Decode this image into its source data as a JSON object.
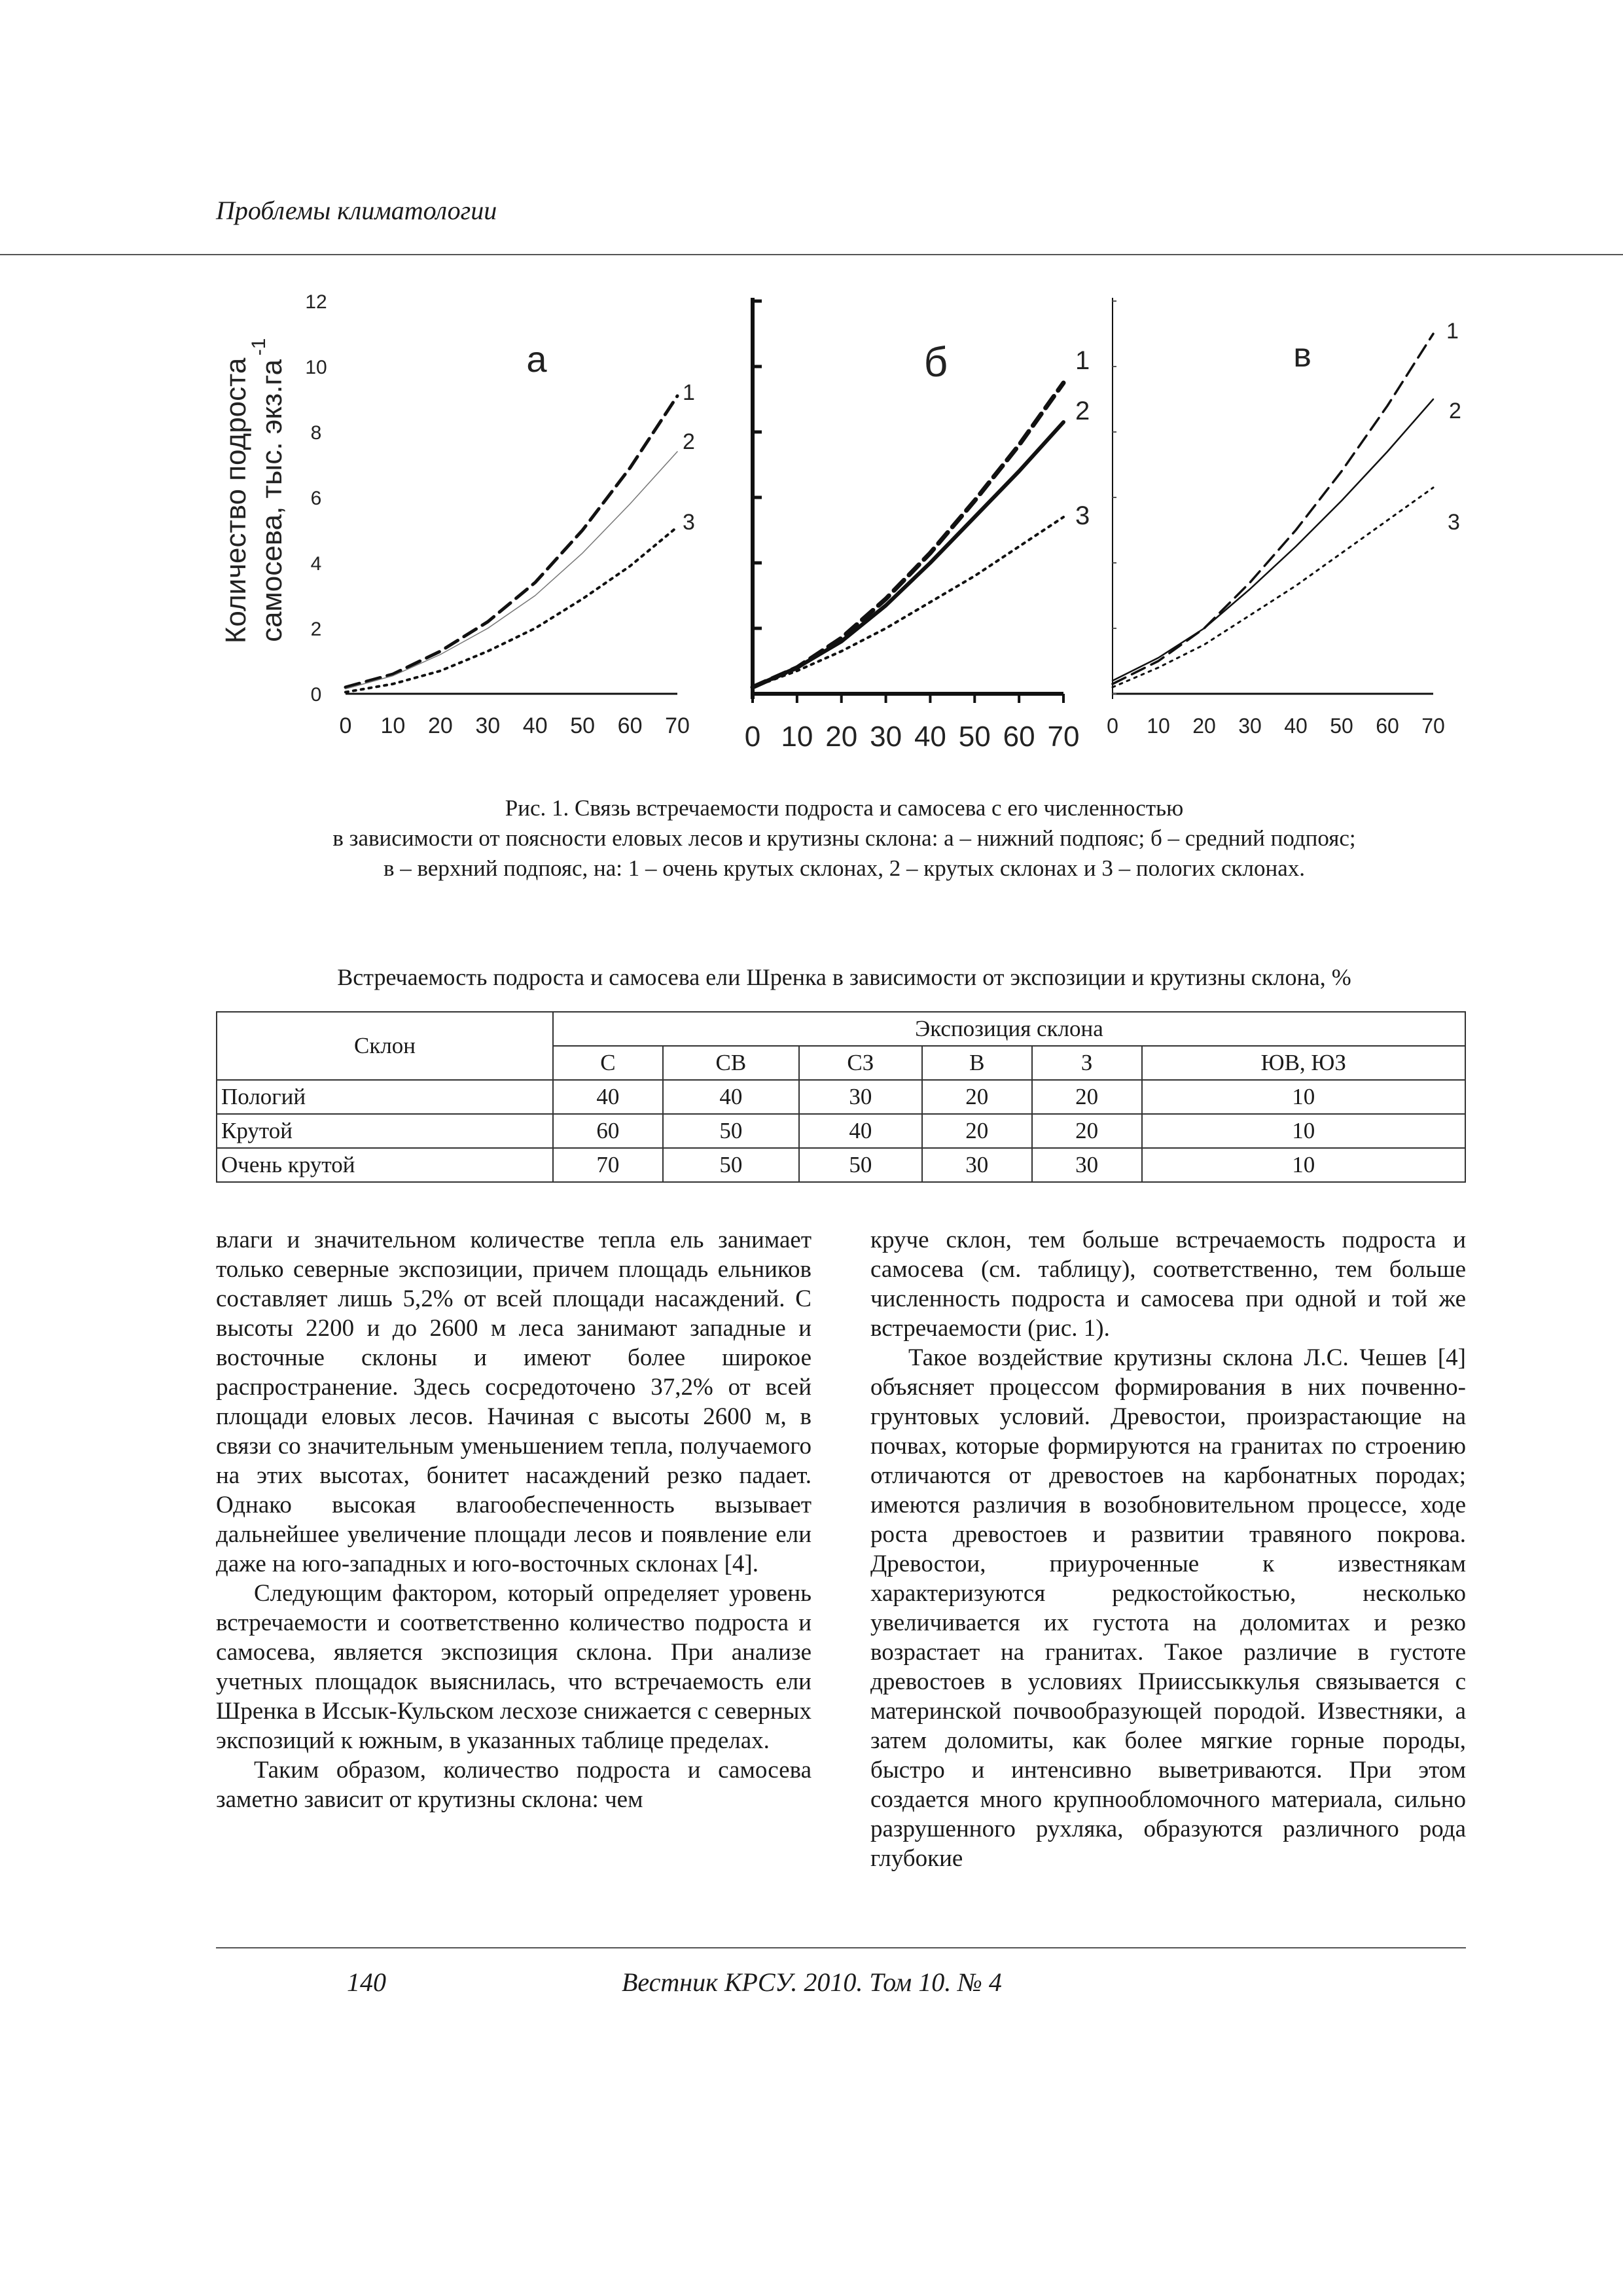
{
  "header": {
    "running_title": "Проблемы климатологии"
  },
  "chart_data": [
    {
      "type": "line",
      "panel_label": "а",
      "ylabel": "Количество подроста самосева, тыс. экз.га-1",
      "xlim": [
        0,
        70
      ],
      "ylim": [
        0,
        12
      ],
      "x_ticks": [
        "0",
        "10",
        "20",
        "30",
        "40",
        "50",
        "60",
        "70"
      ],
      "y_ticks": [
        "0",
        "2",
        "4",
        "6",
        "8",
        "10",
        "12"
      ],
      "series": [
        {
          "name": "1",
          "style": "dashed",
          "x": [
            0,
            10,
            20,
            30,
            40,
            50,
            60,
            70
          ],
          "y": [
            0.2,
            0.6,
            1.3,
            2.2,
            3.4,
            5.0,
            6.9,
            9.1
          ]
        },
        {
          "name": "2",
          "style": "solid",
          "x": [
            0,
            10,
            20,
            30,
            40,
            50,
            60,
            70
          ],
          "y": [
            0.15,
            0.55,
            1.2,
            2.0,
            3.0,
            4.3,
            5.8,
            7.4
          ]
        },
        {
          "name": "3",
          "style": "dotted",
          "x": [
            0,
            10,
            20,
            30,
            40,
            50,
            60,
            70
          ],
          "y": [
            0.05,
            0.3,
            0.7,
            1.3,
            2.0,
            2.9,
            3.9,
            5.1
          ]
        }
      ]
    },
    {
      "type": "line",
      "panel_label": "б",
      "xlim": [
        0,
        70
      ],
      "ylim": [
        0,
        12
      ],
      "x_ticks": [
        "0",
        "10",
        "20",
        "30",
        "40",
        "50",
        "60",
        "70"
      ],
      "series": [
        {
          "name": "1",
          "style": "dashed",
          "x": [
            0,
            10,
            20,
            30,
            40,
            50,
            60,
            70
          ],
          "y": [
            0.2,
            0.8,
            1.7,
            2.9,
            4.3,
            5.9,
            7.6,
            9.5
          ]
        },
        {
          "name": "2",
          "style": "solid",
          "x": [
            0,
            10,
            20,
            30,
            40,
            50,
            60,
            70
          ],
          "y": [
            0.2,
            0.8,
            1.6,
            2.7,
            4.0,
            5.4,
            6.8,
            8.3
          ]
        },
        {
          "name": "3",
          "style": "dotted",
          "x": [
            0,
            10,
            20,
            30,
            40,
            50,
            60,
            70
          ],
          "y": [
            0.2,
            0.7,
            1.3,
            2.0,
            2.8,
            3.6,
            4.5,
            5.4
          ]
        }
      ]
    },
    {
      "type": "line",
      "panel_label": "в",
      "xlim": [
        0,
        70
      ],
      "ylim": [
        0,
        12
      ],
      "x_ticks": [
        "0",
        "10",
        "20",
        "30",
        "40",
        "50",
        "60",
        "70"
      ],
      "series": [
        {
          "name": "1",
          "style": "dashed",
          "x": [
            0,
            10,
            20,
            30,
            40,
            50,
            60,
            70
          ],
          "y": [
            0.3,
            1.0,
            2.0,
            3.4,
            5.0,
            6.8,
            8.8,
            11.0
          ]
        },
        {
          "name": "2",
          "style": "solid",
          "x": [
            0,
            10,
            20,
            30,
            40,
            50,
            60,
            70
          ],
          "y": [
            0.4,
            1.1,
            2.0,
            3.2,
            4.5,
            5.9,
            7.4,
            9.0
          ]
        },
        {
          "name": "3",
          "style": "dotted",
          "x": [
            0,
            10,
            20,
            30,
            40,
            50,
            60,
            70
          ],
          "y": [
            0.2,
            0.8,
            1.5,
            2.4,
            3.3,
            4.3,
            5.3,
            6.3
          ]
        }
      ]
    }
  ],
  "figure_caption": [
    "Рис. 1. Связь встречаемости подроста и самосева с его численностью",
    "в зависимости от поясности еловых лесов и крутизны склона: а – нижний подпояс; б – средний подпояс;",
    "в – верхний подпояс, на: 1 – очень крутых склонах, 2 – крутых склонах и 3 – пологих склонах."
  ],
  "table": {
    "title": "Встречаемость подроста и самосева ели Шренка в зависимости от экспозиции и крутизны склона, %",
    "row_header": "Склон",
    "group_header": "Экспозиция склона",
    "columns": [
      "С",
      "СВ",
      "СЗ",
      "В",
      "З",
      "ЮВ, ЮЗ"
    ],
    "rows": [
      {
        "label": "Пологий",
        "values": [
          "40",
          "40",
          "30",
          "20",
          "20",
          "10"
        ]
      },
      {
        "label": "Крутой",
        "values": [
          "60",
          "50",
          "40",
          "20",
          "20",
          "10"
        ]
      },
      {
        "label": "Очень крутой",
        "values": [
          "70",
          "50",
          "50",
          "30",
          "30",
          "10"
        ]
      }
    ]
  },
  "body": {
    "left_col": [
      "влаги и значительном количестве тепла ель занимает только северные экспозиции, причем площадь ельников составляет лишь 5,2% от всей площади насаждений. С высоты 2200 и до 2600 м леса занимают западные и восточные склоны и имеют более широкое распространение. Здесь сосредоточено 37,2% от всей площади еловых лесов. Начиная с высоты 2600 м, в связи со значительным уменьшением тепла, получаемого на этих высотах, бонитет насаждений резко падает. Однако высокая влагообеспеченность вызывает дальнейшее увеличение площади лесов и появление ели даже на юго-западных и юго-восточных склонах [4].",
      "Следующим фактором, который определяет уровень встречаемости и соответственно количество подроста и самосева, является экспозиция склона. При анализе учетных площадок выяснилась, что встречаемость ели Шренка в Иссык-Кульском лесхозе снижается с северных экспозиций к южным, в указанных таблице пределах.",
      "Таким образом, количество подроста и самосева заметно зависит от крутизны склона: чем"
    ],
    "right_col": [
      "круче склон, тем больше встречаемость подроста и самосева (см. таблицу), соответственно, тем больше численность подроста и самосева при одной и той же встречаемости (рис. 1).",
      "Такое воздействие крутизны склона Л.С. Чешев [4] объясняет процессом формирования в них почвенно-грунтовых условий. Древостои, произрастающие на почвах, которые формируются на гранитах по строению отличаются от древостоев на карбонатных породах; имеются различия в возобновительном процессе, ходе роста древостоев и развитии травяного покрова. Древостои, приуроченные к известнякам характеризуются редкостойкостью, несколько увеличивается их густота на доломитах и резко возрастает на гранитах. Такое различие в густоте древостоев в условиях Приисcыккулья связывается с материнской почвообразующей породой. Известняки, а затем доломиты, как более мягкие горные породы, быстро и интенсивно выветриваются. При этом создается много крупнообломочного материала, сильно разрушенного рухляка, образуются различного рода глубокие"
    ]
  },
  "footer": {
    "page_number": "140",
    "journal": "Вестник КРСУ. 2010. Том 10. № 4"
  }
}
